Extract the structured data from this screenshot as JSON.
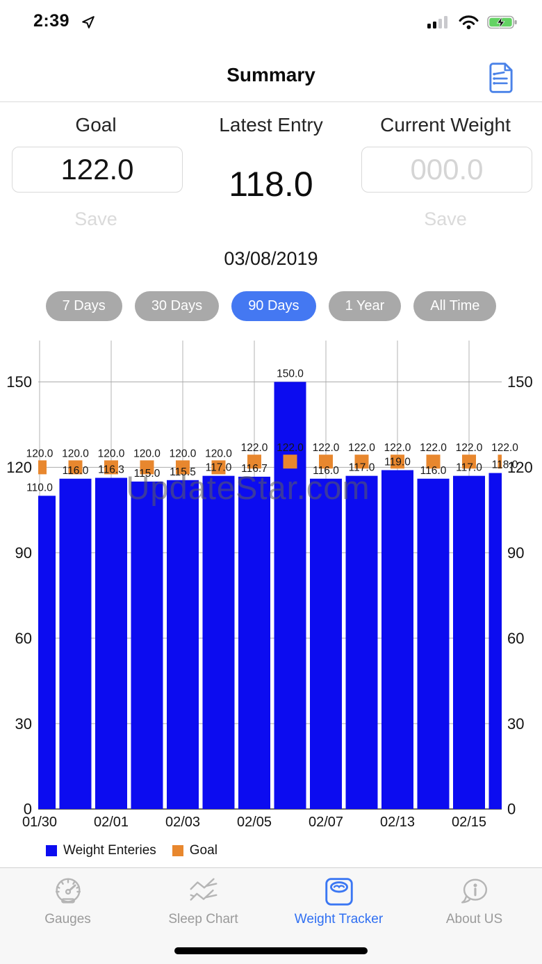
{
  "status_bar": {
    "time": "2:39",
    "icons": [
      "location-arrow-icon",
      "signal-icon",
      "wifi-icon",
      "battery-charging-icon"
    ],
    "battery_color": "#63d263"
  },
  "header": {
    "title": "Summary",
    "action_icon": "document-list-icon",
    "icon_color": "#4a82e8"
  },
  "summary": {
    "goal": {
      "label": "Goal",
      "value": "122.0",
      "save_label": "Save"
    },
    "latest": {
      "label": "Latest Entry",
      "value": "118.0"
    },
    "current": {
      "label": "Current Weight",
      "placeholder": "000.0",
      "save_label": "Save"
    }
  },
  "date": "03/08/2019",
  "range_buttons": [
    {
      "label": "7 Days",
      "active": false
    },
    {
      "label": "30 Days",
      "active": false
    },
    {
      "label": "90 Days",
      "active": true
    },
    {
      "label": "1 Year",
      "active": false
    },
    {
      "label": "All Time",
      "active": false
    }
  ],
  "active_pill_color": "#4478f2",
  "inactive_pill_color": "#a9a9a9",
  "chart_data": {
    "type": "bar",
    "title": "",
    "xlabel": "",
    "ylabel": "",
    "x_tick_labels": [
      "01/30",
      "02/01",
      "02/03",
      "02/05",
      "02/07",
      "02/13",
      "02/15"
    ],
    "x_tick_bar_indices": [
      0,
      2,
      4,
      6,
      8,
      10,
      12
    ],
    "series": [
      {
        "name": "Weight Enteries",
        "type": "bar",
        "color": "#0c0cf0",
        "values": [
          110.0,
          116.0,
          116.3,
          115.0,
          115.5,
          117.0,
          116.7,
          150.0,
          116.0,
          117.0,
          119.0,
          116.0,
          117.0,
          118.0
        ]
      },
      {
        "name": "Goal",
        "type": "square-marker",
        "color": "#e8872e",
        "values": [
          120.0,
          120.0,
          120.0,
          120.0,
          120.0,
          120.0,
          122.0,
          122.0,
          122.0,
          122.0,
          122.0,
          122.0,
          122.0,
          122.0
        ]
      }
    ],
    "ylim": [
      0,
      165
    ],
    "yticks": [
      0,
      30,
      60,
      90,
      120,
      150
    ],
    "y_axis_sides": "both",
    "grid": true,
    "value_label_decimals": 1,
    "legend_position": "bottom-left"
  },
  "watermark": "UpdateStar.com",
  "tab_bar": {
    "items": [
      {
        "label": "Gauges",
        "icon": "gauge-icon",
        "active": false
      },
      {
        "label": "Sleep Chart",
        "icon": "sleep-chart-icon",
        "active": false
      },
      {
        "label": "Weight Tracker",
        "icon": "scale-icon",
        "active": true
      },
      {
        "label": "About US",
        "icon": "chat-info-icon",
        "active": false
      }
    ],
    "active_color": "#2f6ff2"
  }
}
